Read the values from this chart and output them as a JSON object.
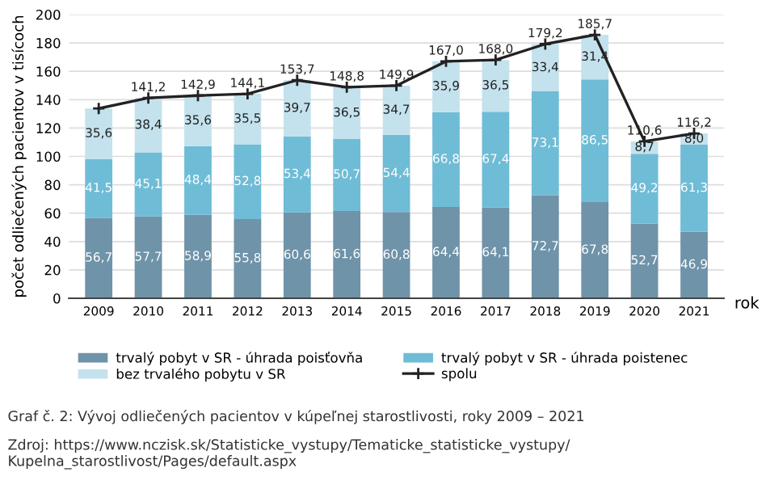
{
  "chart_data": {
    "type": "bar",
    "stacked": true,
    "ylabel": "počet odliečených pacientov v tisícoch",
    "xlabel": "rok",
    "categories": [
      "2009",
      "2010",
      "2011",
      "2012",
      "2013",
      "2014",
      "2015",
      "2016",
      "2017",
      "2018",
      "2019",
      "2020",
      "2021"
    ],
    "series": [
      {
        "name": "trvalý pobyt v SR - úhrada poisťovňa",
        "color": "#6f93a8",
        "values": [
          56.7,
          57.7,
          58.9,
          55.8,
          60.6,
          61.6,
          60.8,
          64.4,
          64.1,
          72.7,
          67.8,
          52.7,
          46.9
        ],
        "value_labels": [
          "56,7",
          "57,7",
          "58,9",
          "55,8",
          "60,6",
          "61,6",
          "60,8",
          "64,4",
          "64,1",
          "72,7",
          "67,8",
          "52,7",
          "46,9"
        ]
      },
      {
        "name": "trvalý pobyt v SR - úhrada poistenec",
        "color": "#6fbcd6",
        "values": [
          41.5,
          45.1,
          48.4,
          52.8,
          53.4,
          50.7,
          54.4,
          66.8,
          67.4,
          73.1,
          86.5,
          49.2,
          61.3
        ],
        "value_labels": [
          "41,5",
          "45,1",
          "48,4",
          "52,8",
          "53,4",
          "50,7",
          "54,4",
          "66,8",
          "67,4",
          "73,1",
          "86,5",
          "49,2",
          "61,3"
        ]
      },
      {
        "name": "bez trvalého pobytu v SR",
        "color": "#c4e2ed",
        "values": [
          35.6,
          38.4,
          35.6,
          35.5,
          39.7,
          36.5,
          34.7,
          35.9,
          36.5,
          33.4,
          31.4,
          8.7,
          8.0
        ],
        "value_labels": [
          "35,6",
          "38,4",
          "35,6",
          "35,5",
          "39,7",
          "36,5",
          "34,7",
          "35,9",
          "36,5",
          "33,4",
          "31,4",
          "8,7",
          "8,0"
        ]
      },
      {
        "name": "spolu",
        "type": "line",
        "color": "#222222",
        "marker": "cross",
        "values": [
          133.8,
          141.2,
          142.9,
          144.1,
          153.7,
          148.8,
          149.9,
          167.0,
          168.0,
          179.2,
          185.7,
          110.6,
          116.2
        ],
        "value_labels": [
          null,
          "141,2",
          "142,9",
          "144,1",
          "153,7",
          "148,8",
          "149,9",
          "167,0",
          "168,0",
          "179,2",
          "185,7",
          "110,6",
          "116,2"
        ]
      }
    ],
    "ylim": [
      0,
      200
    ],
    "yticks": [
      0,
      20,
      40,
      60,
      80,
      100,
      120,
      140,
      160,
      180,
      200
    ],
    "grid": "y",
    "legend": "bottom",
    "annotations": [
      "Graf č. 2: Vývoj odliečených pacientov v kúpeľnej starostlivosti, roky 2009 – 2021",
      "Zdroj: https://www.nczisk.sk/Statisticke_vystupy/Tematicke_statisticke_vystupy/\nKupelna_starostlivost/Pages/default.aspx"
    ]
  }
}
